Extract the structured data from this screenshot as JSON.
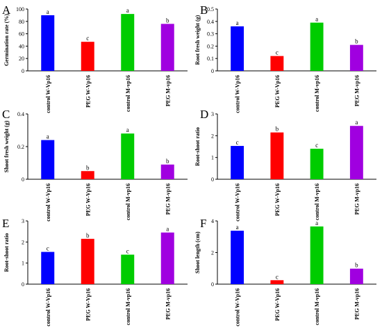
{
  "colors": {
    "control W-Vp16": "#0000ff",
    "PEG W-Vp16": "#ff0000",
    "control M-vp16": "#00cc00",
    "PEG M-vp16": "#a000e0",
    "axis": "#000000"
  },
  "chart_data": [
    {
      "type": "bar",
      "panel": "A",
      "ylabel": "Germination rate (%)",
      "categories": [
        "control W-Vp16",
        "PEG W-Vp16",
        "control M-vp16",
        "PEG M-vp16"
      ],
      "values": [
        90,
        47,
        92,
        76
      ],
      "letters": [
        "a",
        "c",
        "a",
        "b"
      ],
      "ylim": [
        0,
        100
      ],
      "yticks": [
        0,
        20,
        40,
        60,
        80,
        100
      ],
      "ytick_labels": [
        "0",
        "20",
        "40",
        "60",
        "80",
        "100"
      ],
      "grid": false
    },
    {
      "type": "bar",
      "panel": "B",
      "ylabel": "Root fresh weight (g)",
      "categories": [
        "control W-Vp16",
        "PEG W-Vp16",
        "control M-vp16",
        "PEG M-vp16"
      ],
      "values": [
        0.36,
        0.12,
        0.39,
        0.21
      ],
      "letters": [
        "a",
        "c",
        "a",
        "b"
      ],
      "ylim": [
        0,
        0.5
      ],
      "yticks": [
        0,
        0.1,
        0.2,
        0.3,
        0.4,
        0.5
      ],
      "ytick_labels": [
        "0",
        "0.1",
        "0.2",
        "0.3",
        "0.4",
        "0.5"
      ],
      "grid": false
    },
    {
      "type": "bar",
      "panel": "C",
      "ylabel": "Shoot fresh weight (g)",
      "categories": [
        "control W-Vp16",
        "PEG W-Vp16",
        "control M-vp16",
        "PEG M-vp16"
      ],
      "values": [
        0.24,
        0.05,
        0.28,
        0.09
      ],
      "letters": [
        "a",
        "b",
        "a",
        "b"
      ],
      "ylim": [
        0,
        0.4
      ],
      "yticks": [
        0,
        0.2,
        0.4
      ],
      "ytick_labels": [
        "0",
        "0.2",
        "0.4"
      ],
      "grid": false
    },
    {
      "type": "bar",
      "panel": "D",
      "ylabel": "Root-shoot ratio",
      "categories": [
        "control W-Vp16",
        "PEG W-Vp16",
        "control M-vp16",
        "PEG M-vp16"
      ],
      "values": [
        1.53,
        2.15,
        1.4,
        2.45
      ],
      "letters": [
        "c",
        "b",
        "c",
        "a"
      ],
      "ylim": [
        0,
        3
      ],
      "yticks": [
        0,
        1,
        2,
        3
      ],
      "ytick_labels": [
        "0",
        "1",
        "2",
        "3"
      ],
      "grid": false
    },
    {
      "type": "bar",
      "panel": "E",
      "ylabel": "Root-shoot ratio",
      "categories": [
        "control W-Vp16",
        "PEG W-Vp16",
        "control M-vp16",
        "PEG M-vp16"
      ],
      "values": [
        1.53,
        2.15,
        1.4,
        2.45
      ],
      "letters": [
        "c",
        "b",
        "c",
        "a"
      ],
      "ylim": [
        0,
        3
      ],
      "yticks": [
        0,
        1,
        2,
        3
      ],
      "ytick_labels": [
        "0",
        "1",
        "2",
        "3"
      ],
      "grid": false
    },
    {
      "type": "bar",
      "panel": "F",
      "ylabel": "Shoot length (cm)",
      "categories": [
        "control W-Vp16",
        "PEG W-Vp16",
        "control M-vp16",
        "PEG M-vp16"
      ],
      "values": [
        3.38,
        0.25,
        3.65,
        0.98
      ],
      "letters": [
        "a",
        "c",
        "a",
        "b"
      ],
      "ylim": [
        0,
        4
      ],
      "yticks": [
        0,
        2,
        4
      ],
      "ytick_labels": [
        "0",
        "2",
        "4"
      ],
      "grid": false
    }
  ]
}
